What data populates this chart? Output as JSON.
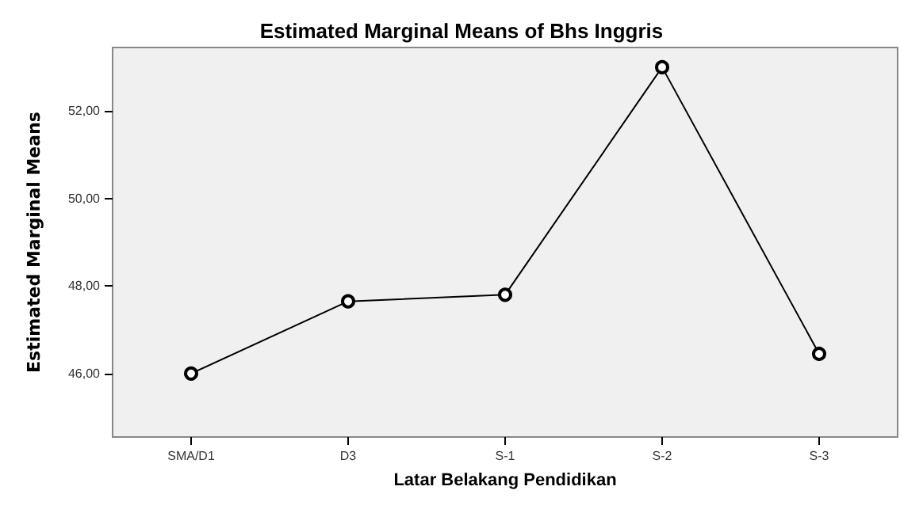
{
  "chart_data": {
    "type": "line",
    "title": "Estimated Marginal Means of Bhs Inggris",
    "xlabel": "Latar Belakang Pendidikan",
    "ylabel": "Estimated Marginal Means",
    "categories": [
      "SMA/D1",
      "D3",
      "S-1",
      "S-2",
      "S-3"
    ],
    "series": [
      {
        "color": "#000000",
        "values": [
          46.0,
          47.65,
          47.8,
          53.0,
          46.45
        ]
      }
    ],
    "ylim": [
      44.55,
      53.45
    ],
    "yticks": [
      {
        "value": 46,
        "label": "46,00"
      },
      {
        "value": 48,
        "label": "48,00"
      },
      {
        "value": 50,
        "label": "50,00"
      },
      {
        "value": 52,
        "label": "52,00"
      }
    ],
    "grid": false,
    "marker": "circle",
    "line_style": "solid"
  }
}
